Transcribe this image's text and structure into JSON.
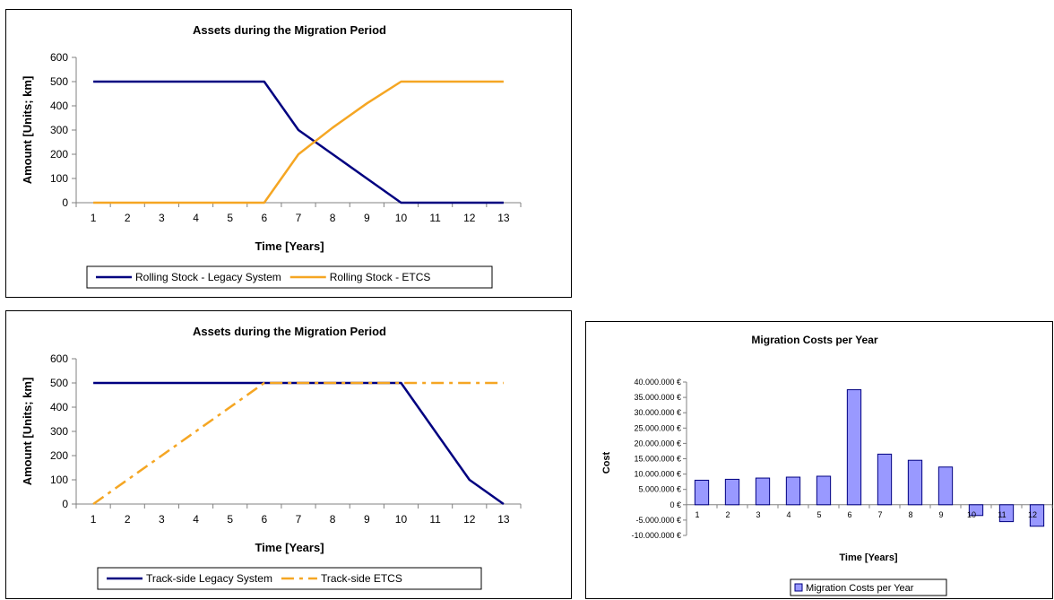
{
  "colors": {
    "navy": "#000080",
    "orange": "#f5a623",
    "bar_fill": "#9999ff",
    "bar_stroke": "#000080"
  },
  "chart_data": [
    {
      "type": "line",
      "title": "Assets during the Migration Period",
      "xlabel": "Time [Years]",
      "ylabel": "Amount [Units; km]",
      "categories": [
        "1",
        "2",
        "3",
        "4",
        "5",
        "6",
        "7",
        "8",
        "9",
        "10",
        "11",
        "12",
        "13"
      ],
      "y_ticks": [
        "0",
        "100",
        "200",
        "300",
        "400",
        "500",
        "600"
      ],
      "ylim": [
        0,
        600
      ],
      "grid": false,
      "legend_position": "bottom",
      "series": [
        {
          "name": "Rolling Stock - Legacy System",
          "color": "#000080",
          "dash": "solid",
          "values": [
            500,
            500,
            500,
            500,
            500,
            500,
            300,
            200,
            100,
            0,
            0,
            0,
            0
          ]
        },
        {
          "name": "Rolling Stock - ETCS",
          "color": "#f5a623",
          "dash": "solid",
          "values": [
            0,
            0,
            0,
            0,
            0,
            0,
            200,
            310,
            410,
            500,
            500,
            500,
            500
          ]
        }
      ]
    },
    {
      "type": "line",
      "title": "Assets during the Migration Period",
      "xlabel": "Time [Years]",
      "ylabel": "Amount [Units; km]",
      "categories": [
        "1",
        "2",
        "3",
        "4",
        "5",
        "6",
        "7",
        "8",
        "9",
        "10",
        "11",
        "12",
        "13"
      ],
      "y_ticks": [
        "0",
        "100",
        "200",
        "300",
        "400",
        "500",
        "600"
      ],
      "ylim": [
        0,
        600
      ],
      "grid": false,
      "legend_position": "bottom",
      "series": [
        {
          "name": "Track-side Legacy System",
          "color": "#000080",
          "dash": "solid",
          "values": [
            500,
            500,
            500,
            500,
            500,
            500,
            500,
            500,
            500,
            500,
            300,
            100,
            0
          ]
        },
        {
          "name": "Track-side ETCS",
          "color": "#f5a623",
          "dash": "dashdot",
          "values": [
            0,
            100,
            200,
            300,
            400,
            500,
            500,
            500,
            500,
            500,
            500,
            500,
            500
          ]
        }
      ]
    },
    {
      "type": "bar",
      "title": "Migration Costs per Year",
      "xlabel": "Time [Years]",
      "ylabel": "Cost",
      "categories": [
        "1",
        "2",
        "3",
        "4",
        "5",
        "6",
        "7",
        "8",
        "9",
        "10",
        "11",
        "12"
      ],
      "y_ticks": [
        "-10.000.000 €",
        "-5.000.000 €",
        "0 €",
        "5.000.000 €",
        "10.000.000 €",
        "15.000.000 €",
        "20.000.000 €",
        "25.000.000 €",
        "30.000.000 €",
        "35.000.000 €",
        "40.000.000 €"
      ],
      "ylim": [
        -10000000,
        40000000
      ],
      "grid": false,
      "legend_position": "bottom",
      "series": [
        {
          "name": "Migration Costs per Year",
          "color": "#9999ff",
          "values": [
            8000000,
            8300000,
            8700000,
            9000000,
            9300000,
            37500000,
            16500000,
            14500000,
            12300000,
            -3500000,
            -5500000,
            -7000000
          ]
        }
      ]
    }
  ]
}
